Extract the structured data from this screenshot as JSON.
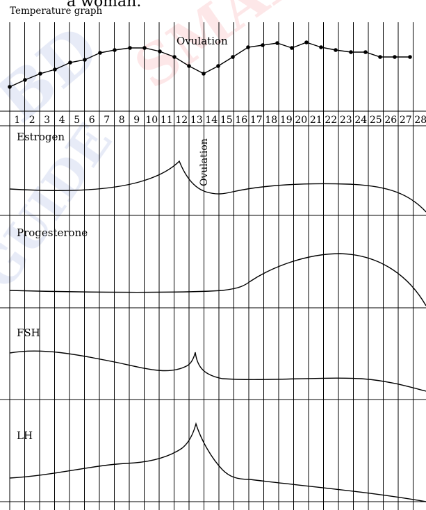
{
  "header": {
    "cut_text": "a woman.",
    "title": "Temperature graph"
  },
  "days": [
    "1",
    "2",
    "3",
    "4",
    "5",
    "6",
    "7",
    "8",
    "9",
    "10",
    "11",
    "12",
    "13",
    "14",
    "15",
    "16",
    "17",
    "18",
    "19",
    "20",
    "21",
    "22",
    "23",
    "24",
    "25",
    "26",
    "27",
    "28"
  ],
  "panels": {
    "temperature": {
      "annotation": "Ovulation"
    },
    "estrogen": {
      "label": "Estrogen",
      "annotation": "Ovulation"
    },
    "progesterone": {
      "label": "Progesterone"
    },
    "fsh": {
      "label": "FSH"
    },
    "lh": {
      "label": "LH"
    }
  },
  "colors": {
    "ink": "#000000",
    "watermark_red": "#e8343a",
    "watermark_blue": "#3355bb"
  }
}
